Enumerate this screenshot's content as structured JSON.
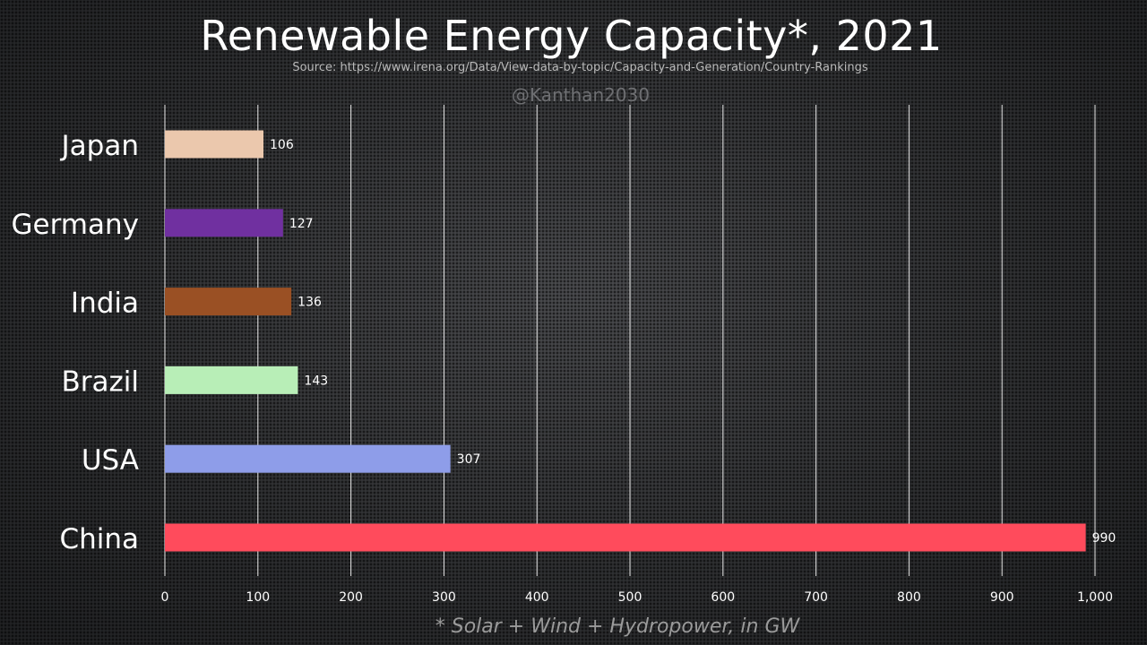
{
  "header": {
    "title": "Renewable Energy Capacity*, 2021",
    "source": "Source: https://www.irena.org/Data/View-data-by-topic/Capacity-and-Generation/Country-Rankings",
    "watermark": "@Kanthan2030",
    "footnote": "* Solar + Wind + Hydropower, in GW"
  },
  "chart_data": {
    "type": "bar",
    "orientation": "horizontal",
    "categories": [
      "Japan",
      "Germany",
      "India",
      "Brazil",
      "USA",
      "China"
    ],
    "values": [
      106,
      127,
      136,
      143,
      307,
      990
    ],
    "value_labels": [
      "106",
      "127",
      "136",
      "143",
      "307",
      "990"
    ],
    "colors": [
      "#ebc8ad",
      "#7030a0",
      "#9a5024",
      "#b8eeb7",
      "#8e9de9",
      "#ff4b5c"
    ],
    "xlim": [
      0,
      1000
    ],
    "xticks": [
      0,
      100,
      200,
      300,
      400,
      500,
      600,
      700,
      800,
      900,
      1000
    ],
    "xtick_labels": [
      "0",
      "100",
      "200",
      "300",
      "400",
      "500",
      "600",
      "700",
      "800",
      "900",
      "1,000"
    ],
    "grid": "vertical",
    "legend": "none"
  }
}
